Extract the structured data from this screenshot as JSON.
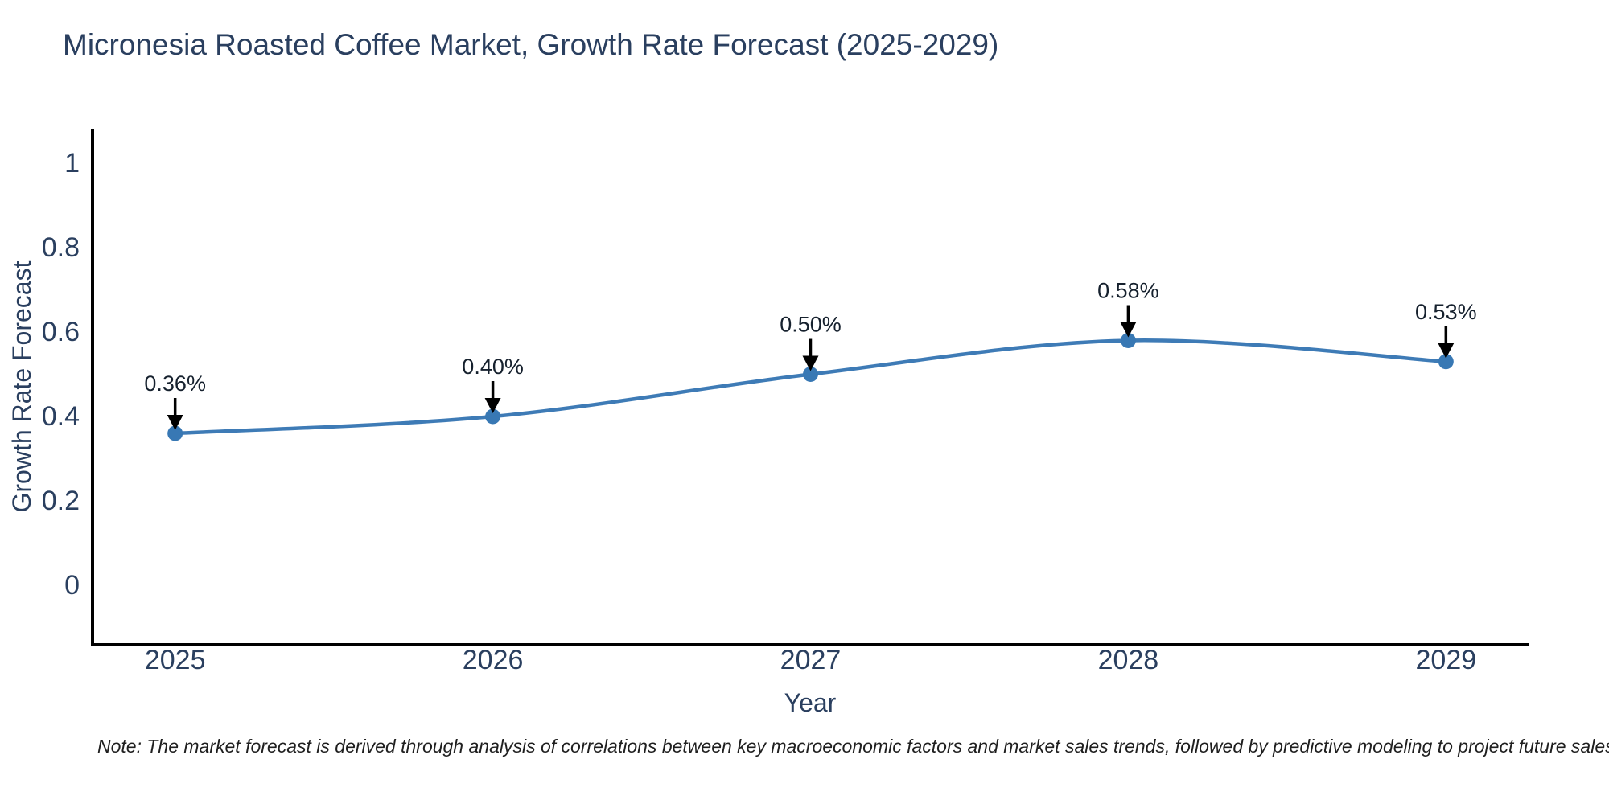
{
  "page": {
    "title": "Micronesia Roasted Coffee Market, Growth Rate Forecast (2025-2029)",
    "note": "Note: The market forecast is derived through analysis of correlations between key macroeconomic factors and market sales trends, followed by predictive modeling to project future sales"
  },
  "colors": {
    "background": "#ffffff",
    "title_text": "#2a3f5f",
    "tick_text": "#2a3f5f",
    "axis_line": "#000000",
    "series_line": "#3e7bb6",
    "marker_fill": "#3878b4",
    "annotation_text": "#16212e",
    "arrow": "#000000"
  },
  "chart_data": {
    "type": "line",
    "title": "Micronesia Roasted Coffee Market, Growth Rate Forecast (2025-2029)",
    "xlabel": "Year",
    "ylabel": "Growth Rate Forecast",
    "x": [
      2025,
      2026,
      2027,
      2028,
      2029
    ],
    "values": [
      0.36,
      0.4,
      0.5,
      0.58,
      0.53
    ],
    "point_labels": [
      "0.36%",
      "0.40%",
      "0.50%",
      "0.58%",
      "0.53%"
    ],
    "x_tick_labels": [
      "2025",
      "2026",
      "2027",
      "2028",
      "2029"
    ],
    "y_ticks": [
      0,
      0.2,
      0.4,
      0.6,
      0.8,
      1
    ],
    "y_tick_labels": [
      "0",
      "0.2",
      "0.4",
      "0.6",
      "0.8",
      "1"
    ],
    "xlim": [
      2024.74,
      2029.26
    ],
    "ylim": [
      -0.141,
      1.082
    ],
    "line_shape": "spline",
    "grid": false,
    "legend": false,
    "annotations_have_arrows": true
  }
}
